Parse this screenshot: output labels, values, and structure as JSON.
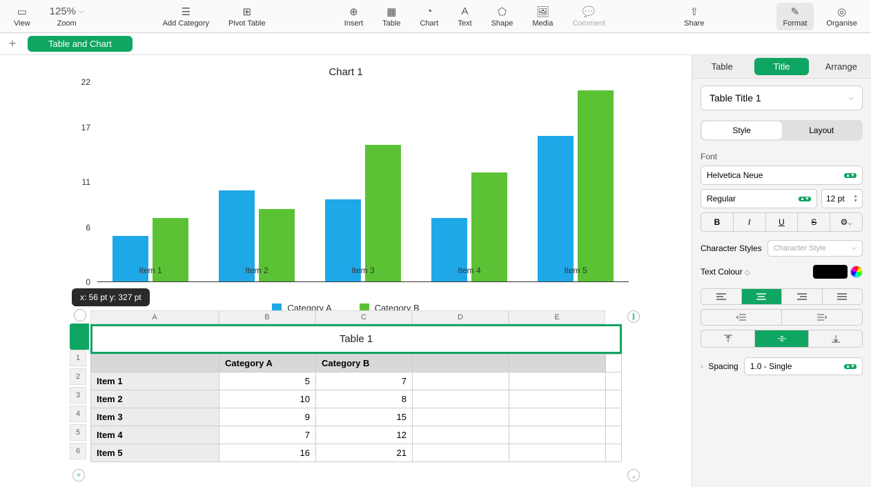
{
  "toolbar": {
    "view": "View",
    "zoom": "Zoom",
    "zoom_value": "125%",
    "add_category": "Add Category",
    "pivot_table": "Pivot Table",
    "insert": "Insert",
    "table": "Table",
    "chart": "Chart",
    "text": "Text",
    "shape": "Shape",
    "media": "Media",
    "comment": "Comment",
    "share": "Share",
    "format": "Format",
    "organise": "Organise"
  },
  "sheet_tab": "Table and Chart",
  "tooltip": "x: 56 pt  y: 327 pt",
  "chart": {
    "title": "Chart 1",
    "categories": [
      "Item 1",
      "Item 2",
      "Item 3",
      "Item 4",
      "Item 5"
    ],
    "series_a": {
      "name": "Category A",
      "values": [
        5,
        10,
        9,
        7,
        16
      ],
      "color": "#1fa8e8"
    },
    "series_b": {
      "name": "Category B",
      "values": [
        7,
        8,
        15,
        12,
        21
      ],
      "color": "#5bc236"
    },
    "ymax": 22,
    "yticks": [
      0,
      6,
      11,
      17,
      22
    ]
  },
  "table": {
    "title": "Table 1",
    "col_letters": [
      "A",
      "B",
      "C",
      "D",
      "E"
    ],
    "headers": [
      "",
      "Category A",
      "Category B"
    ],
    "rows": [
      {
        "n": 2,
        "name": "Item 1",
        "a": 5,
        "b": 7
      },
      {
        "n": 3,
        "name": "Item 2",
        "a": 10,
        "b": 8
      },
      {
        "n": 4,
        "name": "Item 3",
        "a": 9,
        "b": 15
      },
      {
        "n": 5,
        "name": "Item 4",
        "a": 7,
        "b": 12
      },
      {
        "n": 6,
        "name": "Item 5",
        "a": 16,
        "b": 21
      }
    ]
  },
  "inspector": {
    "tabs": [
      "Table",
      "Title",
      "Arrange"
    ],
    "active_tab": 1,
    "title_style": "Table Title 1",
    "subtabs": [
      "Style",
      "Layout"
    ],
    "font_label": "Font",
    "font_family": "Helvetica Neue",
    "font_weight": "Regular",
    "font_size": "12 pt",
    "char_styles_label": "Character Styles",
    "char_style_placeholder": "Character Style",
    "text_colour_label": "Text Colour",
    "text_colour": "#000000",
    "spacing_label": "Spacing",
    "spacing_value": "1.0 - Single"
  }
}
